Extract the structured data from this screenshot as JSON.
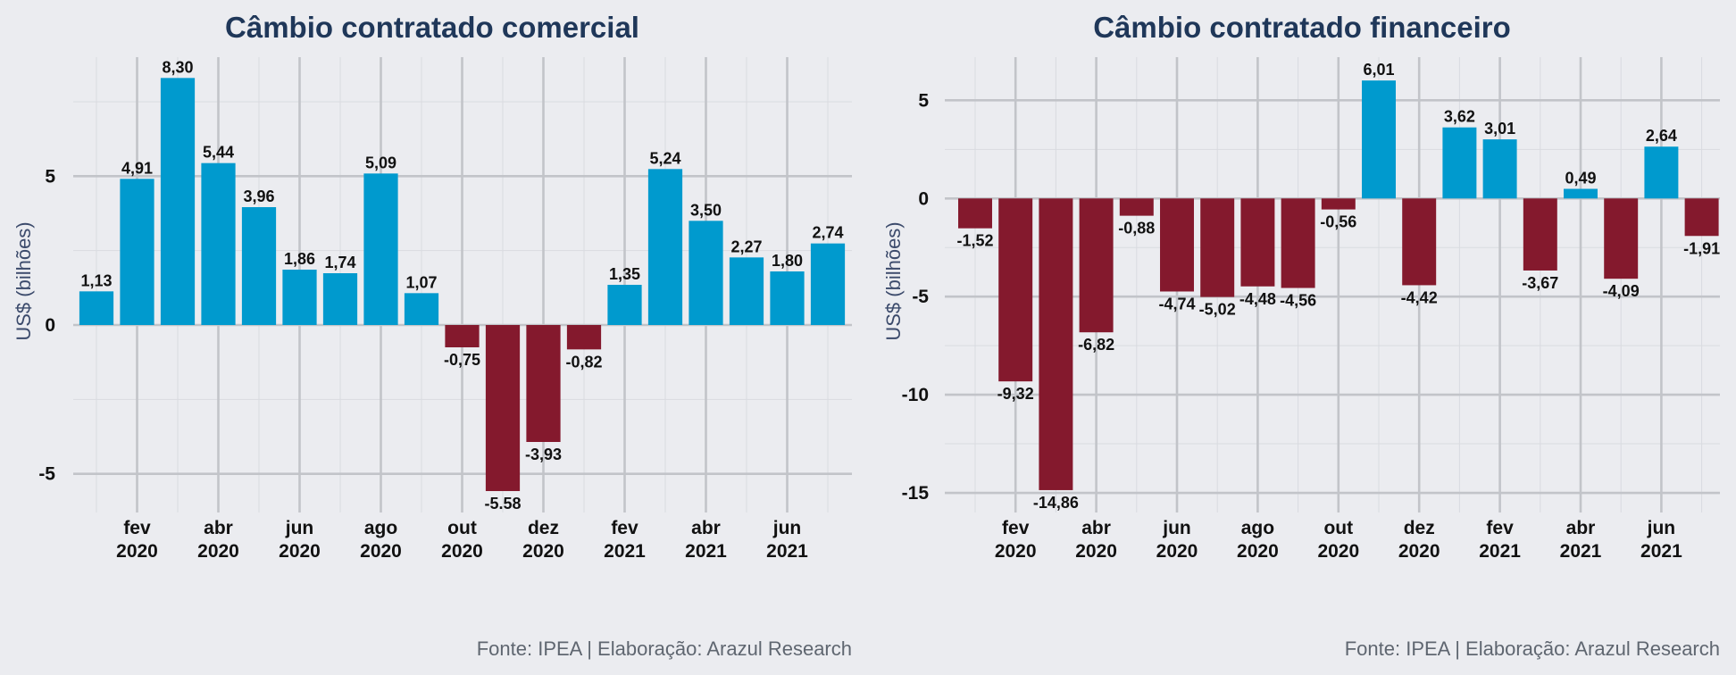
{
  "caption": "Fonte: IPEA | Elaboração: Arazul Research",
  "chart_data": [
    {
      "type": "bar",
      "title": "Câmbio contratado comercial",
      "xlabel": "",
      "ylabel": "US$ (bilhões)",
      "ylim": [
        -6.3,
        9.0
      ],
      "yticks": [
        5,
        0,
        -5
      ],
      "ytick_labels": [
        "5",
        "0",
        "-5"
      ],
      "categories": [
        "jan 2020",
        "fev 2020",
        "mar 2020",
        "abr 2020",
        "mai 2020",
        "jun 2020",
        "jul 2020",
        "ago 2020",
        "set 2020",
        "out 2020",
        "nov 2020",
        "dez 2020",
        "jan 2021",
        "fev 2021",
        "mar 2021",
        "abr 2021",
        "mai 2021",
        "jun 2021",
        "jul 2021"
      ],
      "values": [
        1.13,
        4.91,
        8.3,
        5.44,
        3.96,
        1.86,
        1.74,
        5.09,
        1.07,
        -0.75,
        -5.58,
        -3.93,
        -0.82,
        1.35,
        5.24,
        3.5,
        2.27,
        1.8,
        2.74
      ],
      "value_labels": [
        "1,13",
        "4,91",
        "8,30",
        "5,44",
        "3,96",
        "1,86",
        "1,74",
        "5,09",
        "1,07",
        "-0,75",
        "-5.58",
        "-3,93",
        "-0,82",
        "1,35",
        "5,24",
        "3,50",
        "2,27",
        "1,80",
        "2,74"
      ],
      "xticks": [
        {
          "month": "fev",
          "year": "2020",
          "at": 1
        },
        {
          "month": "abr",
          "year": "2020",
          "at": 3
        },
        {
          "month": "jun",
          "year": "2020",
          "at": 5
        },
        {
          "month": "ago",
          "year": "2020",
          "at": 7
        },
        {
          "month": "out",
          "year": "2020",
          "at": 9
        },
        {
          "month": "dez",
          "year": "2020",
          "at": 11
        },
        {
          "month": "fev",
          "year": "2021",
          "at": 13
        },
        {
          "month": "abr",
          "year": "2021",
          "at": 15
        },
        {
          "month": "jun",
          "year": "2021",
          "at": 17
        }
      ],
      "colors": {
        "positive": "#009ace",
        "negative": "#84192d"
      },
      "grid": true,
      "legend": "none"
    },
    {
      "type": "bar",
      "title": "Câmbio contratado financeiro",
      "xlabel": "",
      "ylabel": "US$ (bilhões)",
      "ylim": [
        -16.0,
        7.2
      ],
      "yticks": [
        5,
        0,
        -5,
        -10,
        -15
      ],
      "ytick_labels": [
        "5",
        "0",
        "-5",
        "-10",
        "-15"
      ],
      "categories": [
        "jan 2020",
        "fev 2020",
        "mar 2020",
        "abr 2020",
        "mai 2020",
        "jun 2020",
        "jul 2020",
        "ago 2020",
        "set 2020",
        "out 2020",
        "nov 2020",
        "dez 2020",
        "jan 2021",
        "fev 2021",
        "mar 2021",
        "abr 2021",
        "mai 2021",
        "jun 2021",
        "jul 2021"
      ],
      "values": [
        -1.52,
        -9.32,
        -14.86,
        -6.82,
        -0.88,
        -4.74,
        -5.02,
        -4.48,
        -4.56,
        -0.56,
        6.01,
        -4.42,
        3.62,
        3.01,
        -3.67,
        0.49,
        -4.09,
        2.64,
        -1.91
      ],
      "value_labels": [
        "-1,52",
        "-9,32",
        "-14,86",
        "-6,82",
        "-0,88",
        "-4,74",
        "-5,02",
        "-4,48",
        "-4,56",
        "-0,56",
        "6,01",
        "-4,42",
        "3,62",
        "3,01",
        "-3,67",
        "0,49",
        "-4,09",
        "2,64",
        "-1,91"
      ],
      "xticks": [
        {
          "month": "fev",
          "year": "2020",
          "at": 1
        },
        {
          "month": "abr",
          "year": "2020",
          "at": 3
        },
        {
          "month": "jun",
          "year": "2020",
          "at": 5
        },
        {
          "month": "ago",
          "year": "2020",
          "at": 7
        },
        {
          "month": "out",
          "year": "2020",
          "at": 9
        },
        {
          "month": "dez",
          "year": "2020",
          "at": 11
        },
        {
          "month": "fev",
          "year": "2021",
          "at": 13
        },
        {
          "month": "abr",
          "year": "2021",
          "at": 15
        },
        {
          "month": "jun",
          "year": "2021",
          "at": 17
        }
      ],
      "colors": {
        "positive": "#009ace",
        "negative": "#84192d"
      },
      "grid": true,
      "legend": "none"
    }
  ]
}
